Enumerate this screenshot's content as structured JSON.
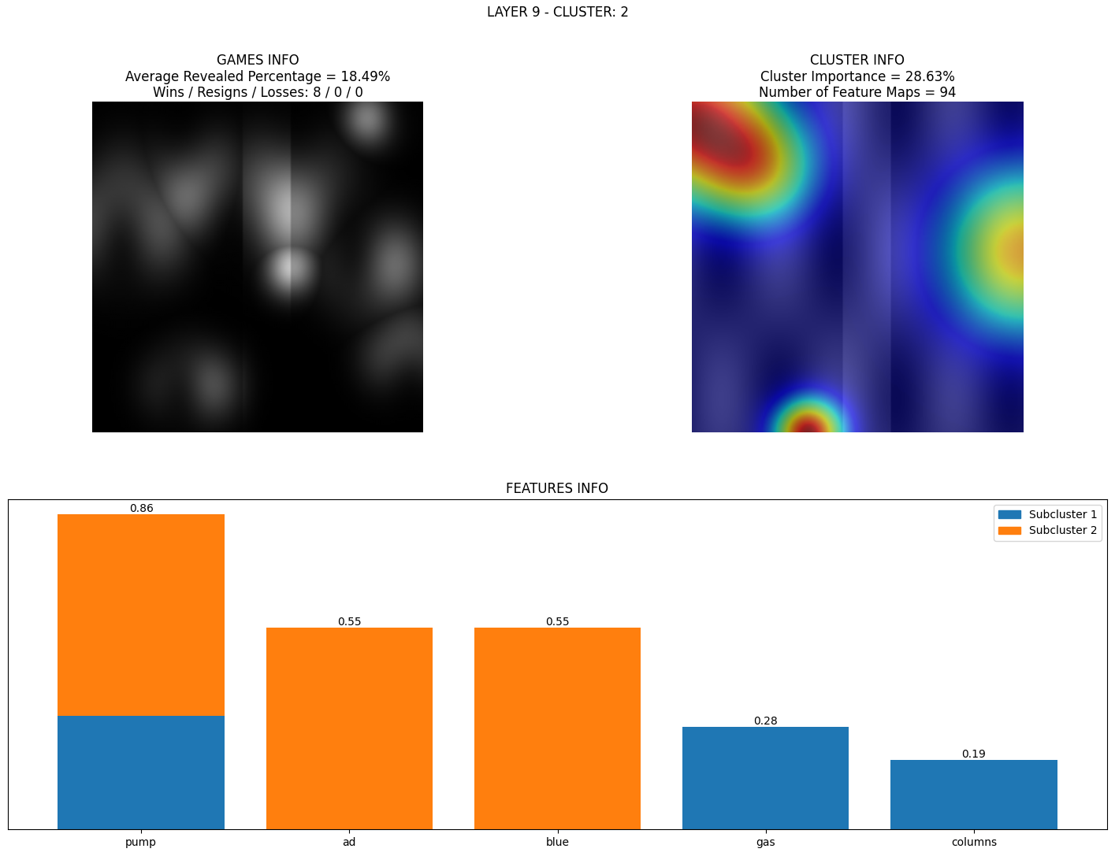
{
  "title": "LAYER 9 - CLUSTER: 2",
  "panels": [
    {
      "title": "GAMES INFO\nAverage Revealed Percentage = 18.49%\nWins / Resigns / Losses: 8 / 0 / 0"
    },
    {
      "title": "CLUSTER INFO\nCluster Importance = 28.63%\nNumber of Feature Maps = 94"
    }
  ],
  "chart_data": {
    "type": "bar",
    "title": "FEATURES INFO",
    "categories": [
      "pump",
      "ad",
      "blue",
      "gas",
      "columns"
    ],
    "stacked": true,
    "series": [
      {
        "name": "Subcluster 1",
        "color": "#1f77b4",
        "values": [
          0.31,
          0,
          0,
          0.28,
          0.19
        ]
      },
      {
        "name": "Subcluster 2",
        "color": "#ff7f0e",
        "values": [
          0.55,
          0.55,
          0.55,
          0,
          0
        ]
      }
    ],
    "totals": [
      0.86,
      0.55,
      0.55,
      0.28,
      0.19
    ],
    "data_labels": true,
    "ylim": [
      0,
      0.9
    ],
    "yticks": [],
    "tick_labels": "x",
    "legend": "upper right"
  }
}
